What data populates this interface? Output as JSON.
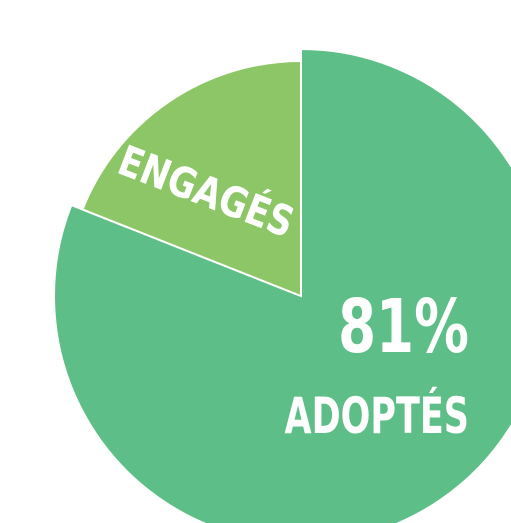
{
  "chart_data": {
    "type": "pie",
    "slices": [
      {
        "label": "ADOPTÉS",
        "value": 81,
        "value_text": "81%",
        "color": "#5dbf87"
      },
      {
        "label": "ENGAGÉS",
        "value": 19,
        "value_text": "",
        "color": "#8dc666"
      }
    ],
    "title": "",
    "legend": "none"
  }
}
